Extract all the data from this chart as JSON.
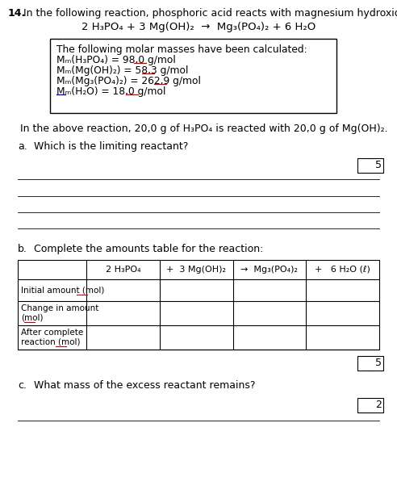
{
  "title_num": "14.",
  "title_text": " In the following reaction, phosphoric acid reacts with magnesium hydroxide:",
  "reaction": "2 H₃PO₄ + 3 Mg(OH)₂  →  Mg₃(PO₄)₂ + 6 H₂O",
  "box_title": "The following molar masses have been calculated:",
  "mm_lines": [
    {
      "before": "Mₘ(H₃PO₄) = 98,0 g/",
      "mol": "mol",
      "ul_color": "#cc0000"
    },
    {
      "before": "Mₘ(Mg(OH)₂) = 58,3 g/",
      "mol": "mol",
      "ul_color": "#cc0000"
    },
    {
      "before": "Mₘ(Mg₃(PO₄)₂) = 262,9 g/",
      "mol": "mol",
      "ul_color": "#cc0000"
    },
    {
      "before": "Mₘ(H₂O) = 18,0 g/",
      "mol": "mol",
      "ul_color": "#cc0000"
    }
  ],
  "mm4_underline_Mm": true,
  "given_text": "In the above reaction, 20,0 g of H₃PO₄ is reacted with 20,0 g of Mg(OH)₂.",
  "part_a_label": "a.",
  "part_a_text": "Which is the limiting reactant?",
  "score_a": "5",
  "num_answer_lines_a": 3,
  "part_b_label": "b.",
  "part_b_text": "Complete the amounts table for the reaction:",
  "table_col0_header": "",
  "table_headers": [
    "2 H₃PO₄",
    "+  3 Mg(OH)₂",
    "→  Mg₃(PO₄)₂",
    "+   6 H₂O (ℓ)"
  ],
  "table_row_labels": [
    "Initial amount (mol)",
    "Change in amount\n(mol)",
    "After complete\nreaction (mol)"
  ],
  "score_b": "5",
  "part_c_label": "c.",
  "part_c_text": "What mass of the excess reactant remains?",
  "score_c": "2",
  "bg_color": "#ffffff"
}
